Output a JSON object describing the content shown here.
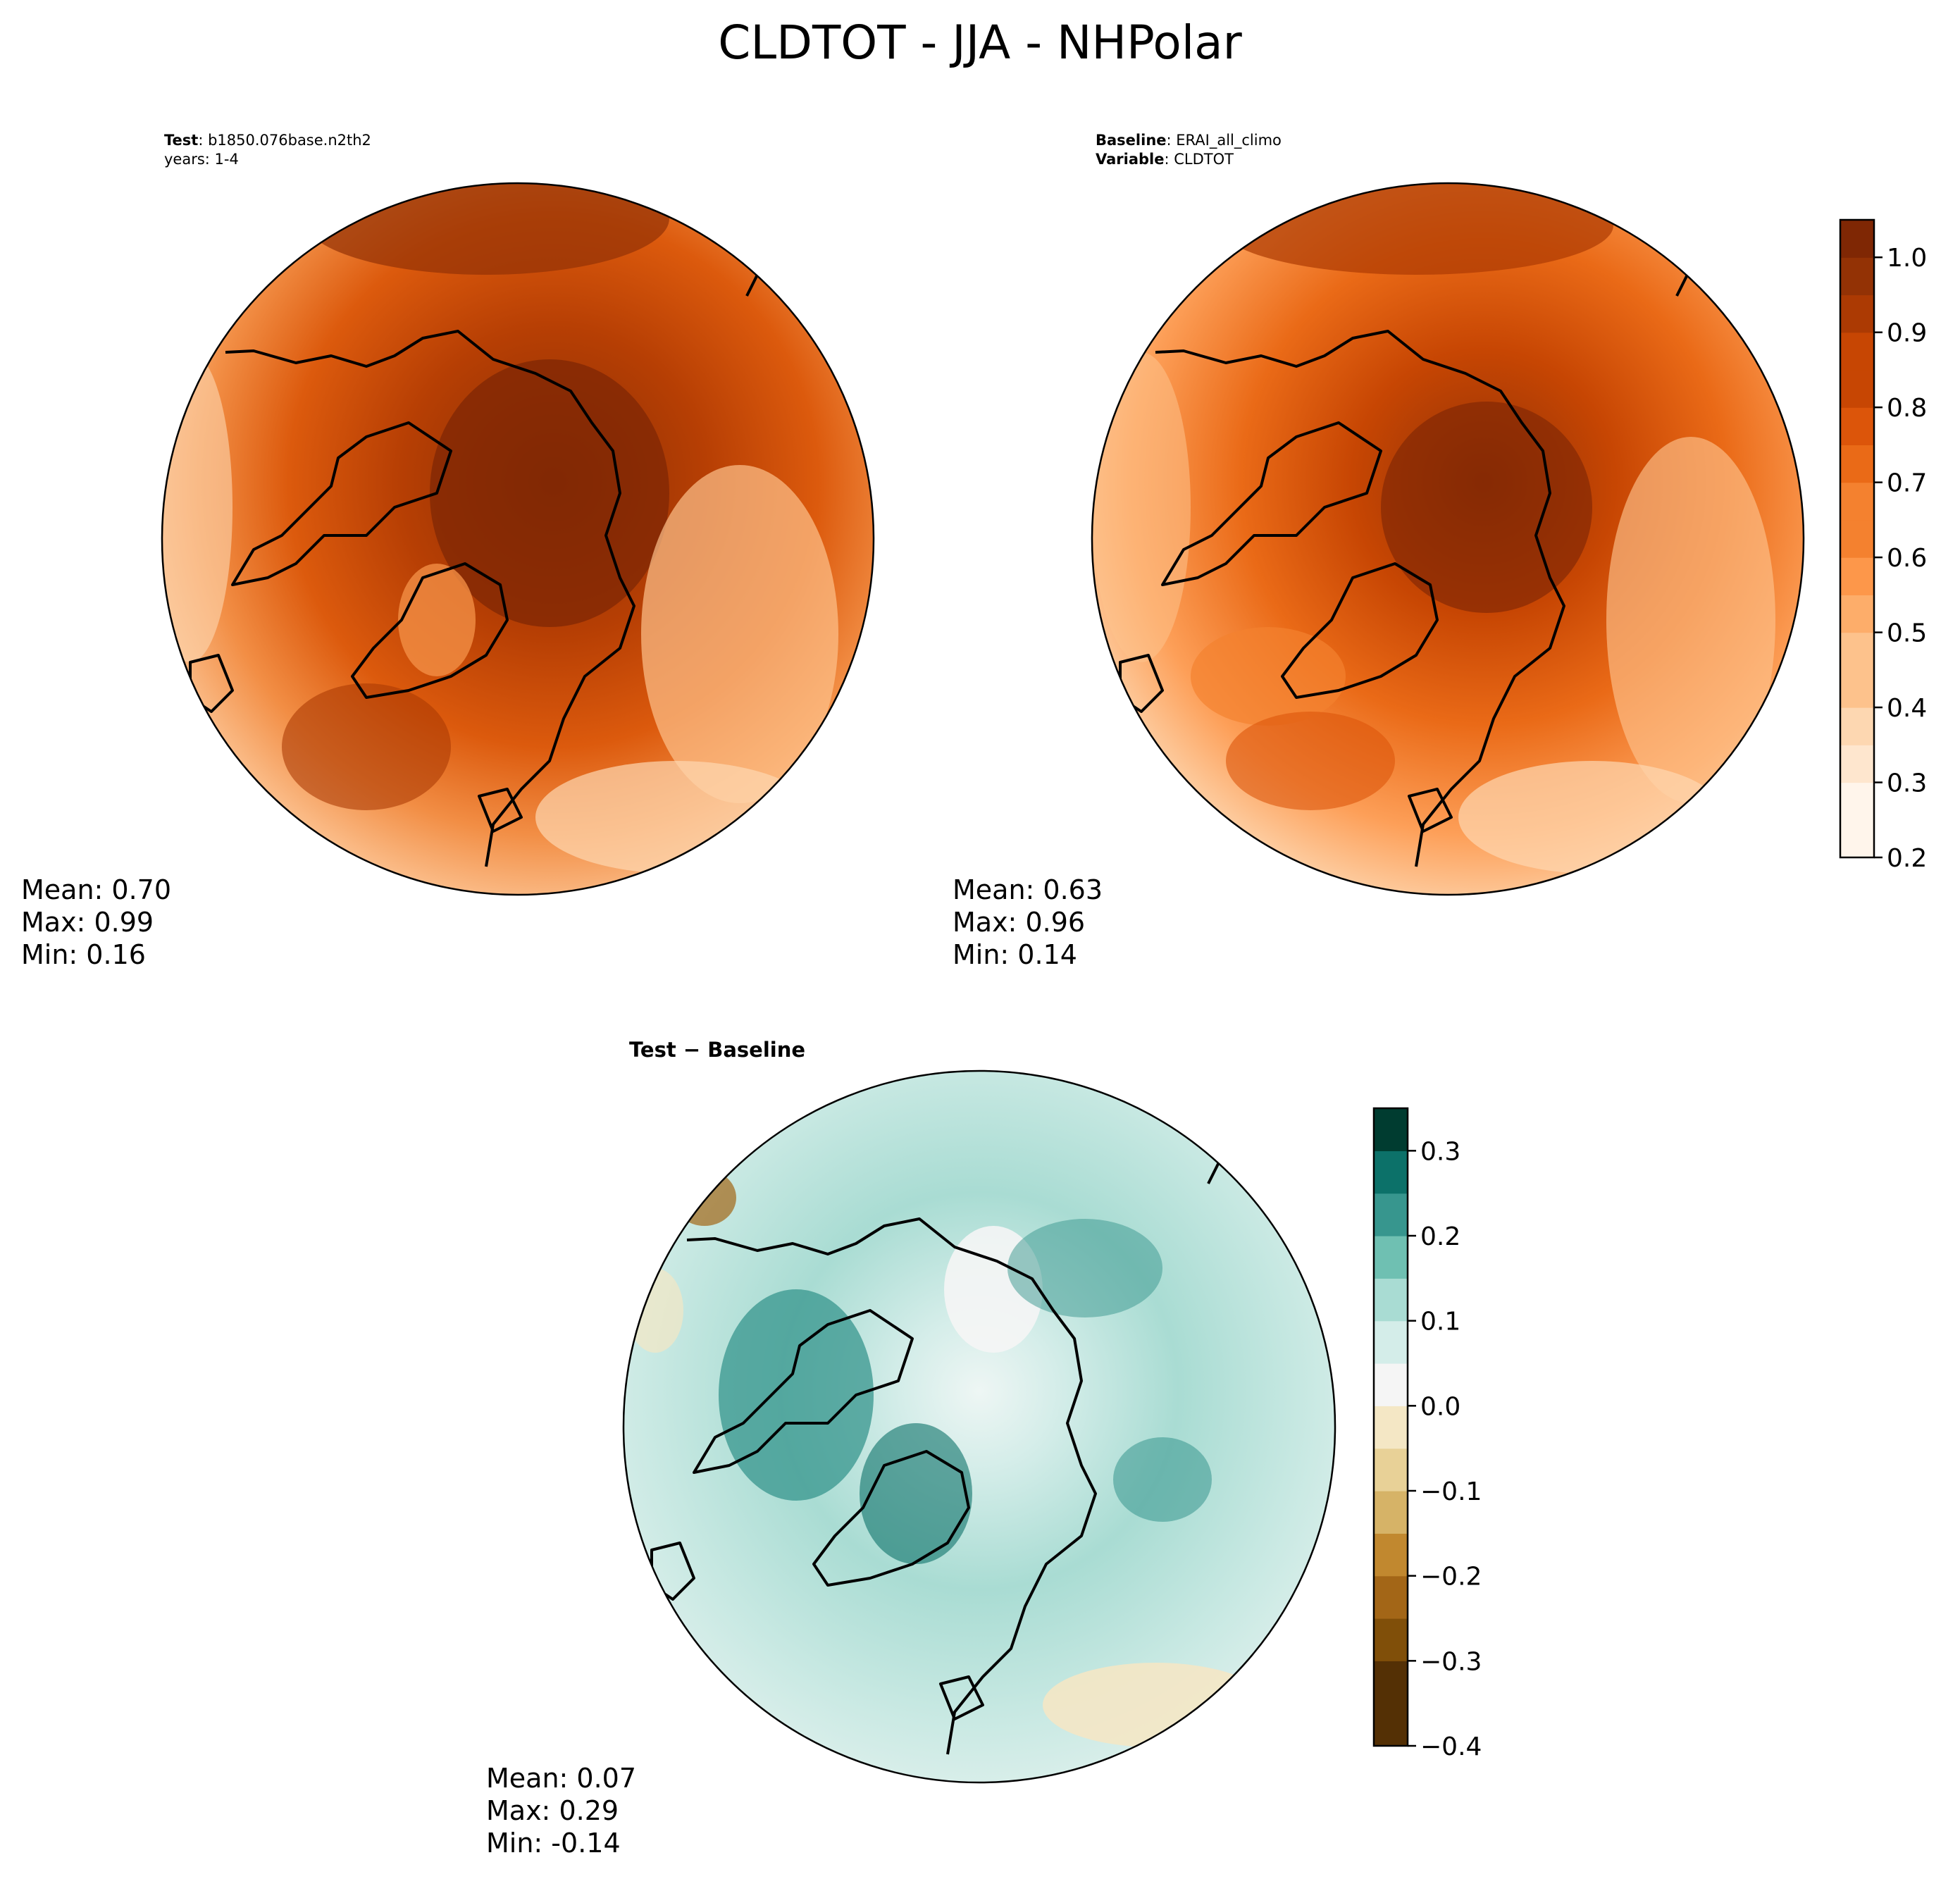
{
  "title": "CLDTOT - JJA - NHPolar",
  "panels": {
    "test": {
      "header_key1": "Test",
      "header_val1": ": b1850.076base.n2th2",
      "header_line2": "years: 1-4",
      "stats": {
        "mean": "Mean:  0.70",
        "max": "Max:  0.99",
        "min": "Min:  0.16"
      }
    },
    "baseline": {
      "header_key1": "Baseline",
      "header_val1": ": ERAI_all_climo",
      "header_key2": "Variable",
      "header_val2": ": CLDTOT",
      "stats": {
        "mean": "Mean:  0.63",
        "max": "Max:  0.96",
        "min": "Min:  0.14"
      }
    },
    "diff": {
      "header": "Test − Baseline",
      "stats": {
        "mean": "Mean:  0.07",
        "max": "Max:  0.29",
        "min": "Min: -0.14"
      }
    }
  },
  "colors": {
    "oranges": [
      "#fff5eb",
      "#fee6ce",
      "#fdd7b1",
      "#fdc28c",
      "#fdad6a",
      "#fd974a",
      "#f4812f",
      "#ea6a17",
      "#dc550a",
      "#c74603",
      "#ac3a03",
      "#933205",
      "#7f2704"
    ],
    "brbg": [
      "#543005",
      "#804f09",
      "#a36617",
      "#c1882f",
      "#d6b367",
      "#e8d197",
      "#f4e7c5",
      "#f5f5f5",
      "#d4ede9",
      "#a9dcd3",
      "#6fc0b2",
      "#37968e",
      "#0c7169",
      "#003c30"
    ]
  },
  "chart_data": [
    {
      "type": "heatmap",
      "name": "test",
      "projection": "north-polar-stereographic",
      "colorbar": false,
      "stats": {
        "mean": 0.7,
        "max": 0.99,
        "min": 0.16
      }
    },
    {
      "type": "heatmap",
      "name": "baseline",
      "projection": "north-polar-stereographic",
      "colorbar": {
        "orientation": "vertical",
        "vmin": 0.2,
        "vmax": 1.05,
        "step": 0.05,
        "ticks": [
          0.2,
          0.3,
          0.4,
          0.5,
          0.6,
          0.7,
          0.8,
          0.9,
          1.0
        ],
        "tick_labels": [
          "0.2",
          "0.3",
          "0.4",
          "0.5",
          "0.6",
          "0.7",
          "0.8",
          "0.9",
          "1.0"
        ]
      },
      "stats": {
        "mean": 0.63,
        "max": 0.96,
        "min": 0.14
      }
    },
    {
      "type": "heatmap",
      "name": "diff",
      "projection": "north-polar-stereographic",
      "colorbar": {
        "orientation": "vertical",
        "vmin": -0.4,
        "vmax": 0.35,
        "step": 0.05,
        "ticks": [
          -0.4,
          -0.3,
          -0.2,
          -0.1,
          0.0,
          0.1,
          0.2,
          0.3
        ],
        "tick_labels": [
          "−0.4",
          "−0.3",
          "−0.2",
          "−0.1",
          "0.0",
          "0.1",
          "0.2",
          "0.3"
        ]
      },
      "stats": {
        "mean": 0.07,
        "max": 0.29,
        "min": -0.14
      }
    }
  ]
}
